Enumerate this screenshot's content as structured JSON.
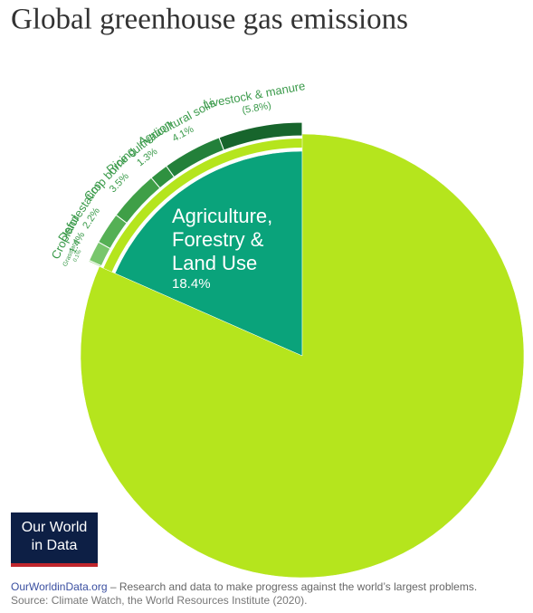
{
  "chart_data": {
    "type": "pie",
    "title": "Global greenhouse gas emissions",
    "categories": [
      "Agriculture, Forestry & Land Use",
      null
    ],
    "values": [
      18.4,
      81.6
    ],
    "value_labels": [
      "18.4%",
      null
    ],
    "colors": [
      "#0aa37b",
      "#b5e51d"
    ],
    "breakdown": {
      "categories": [
        "Livestock & manure",
        "Agricultural soils",
        "Rice cultivation",
        "Crop burning",
        "Deforestation",
        "Cropland",
        "Grassland"
      ],
      "values": [
        5.8,
        4.1,
        1.3,
        3.5,
        2.2,
        1.4,
        0.1
      ],
      "value_labels": [
        "(5.8%)",
        "4.1%",
        "1.3%",
        "3.5%",
        "2.2%",
        "1.4%",
        "0.1%"
      ],
      "colors": [
        "#17652c",
        "#23803a",
        "#2f9140",
        "#3f9f47",
        "#55b055",
        "#78c66c",
        "#9ad88a"
      ]
    }
  },
  "logo": [
    "Our World",
    "in Data"
  ],
  "footer": {
    "link": "OurWorldinData.org",
    "text": " – Research and data to make progress against the world’s largest problems.",
    "source": "Source: Climate Watch, the World Resources Institute (2020)."
  }
}
